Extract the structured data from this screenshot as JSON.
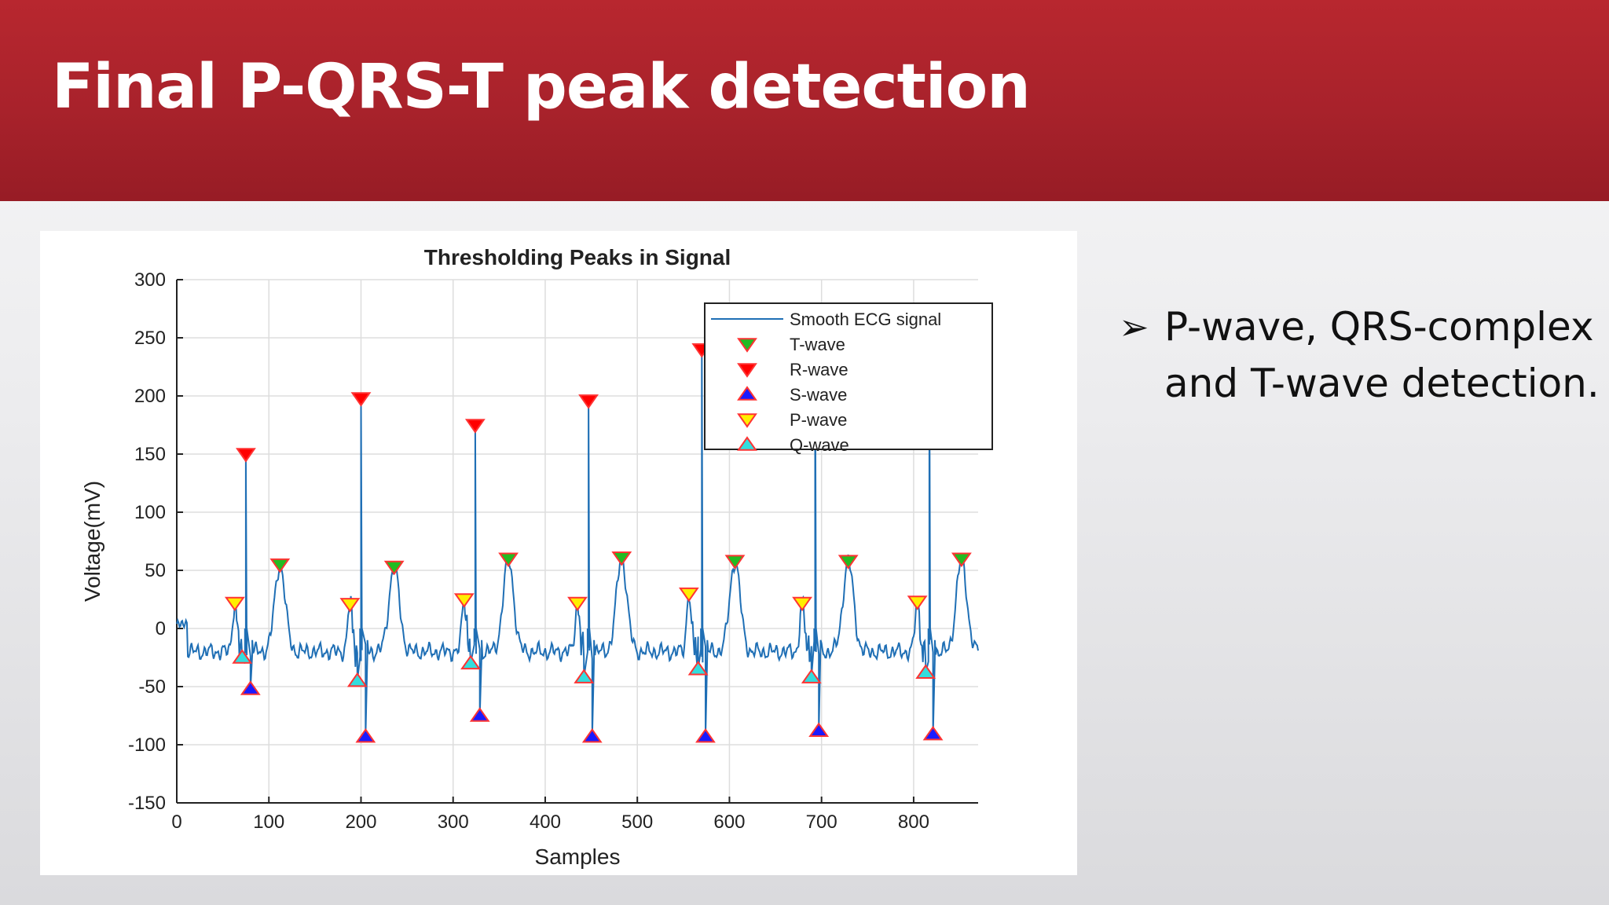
{
  "slide": {
    "title": "Final P-QRS-T peak detection",
    "bullet_symbol": "➢",
    "bullet_lines": [
      "P-wave, QRS-complex",
      "and T-wave detection."
    ]
  },
  "colors": {
    "header": "#a8222b",
    "signal": "#1f6fb5",
    "t_wave": "#22bb22",
    "r_wave": "#ff0000",
    "s_wave": "#1a1aff",
    "p_wave": "#ffee00",
    "q_wave": "#33dddd",
    "marker_edge": "#ff3333"
  },
  "chart_data": {
    "type": "line",
    "title": "Thresholding Peaks in Signal",
    "xlabel": "Samples",
    "ylabel": "Voltage(mV)",
    "xlim": [
      0,
      870
    ],
    "ylim": [
      -150,
      300
    ],
    "xticks": [
      0,
      100,
      200,
      300,
      400,
      500,
      600,
      700,
      800
    ],
    "yticks": [
      300,
      250,
      200,
      150,
      100,
      50,
      0,
      -50,
      -100,
      -150
    ],
    "grid": true,
    "legend": {
      "position": "top-right",
      "entries": [
        "Smooth ECG signal",
        "T-wave",
        "R-wave",
        "S-wave",
        "P-wave",
        "Q-wave"
      ]
    },
    "series": [
      {
        "name": "Smooth ECG signal",
        "kind": "line"
      },
      {
        "name": "T-wave",
        "kind": "marker",
        "marker": "down-triangle",
        "color": "#22bb22",
        "x": [
          112,
          236,
          360,
          483,
          606,
          729,
          852
        ],
        "y": [
          55,
          53,
          60,
          61,
          58,
          58,
          60
        ]
      },
      {
        "name": "R-wave",
        "kind": "marker",
        "marker": "down-triangle",
        "color": "#ff0000",
        "x": [
          75,
          200,
          324,
          447,
          570,
          693,
          817
        ],
        "y": [
          150,
          198,
          175,
          196,
          240,
          260,
          250
        ]
      },
      {
        "name": "S-wave",
        "kind": "marker",
        "marker": "up-triangle",
        "color": "#1a1aff",
        "x": [
          80,
          205,
          329,
          451,
          574,
          697,
          821
        ],
        "y": [
          -52,
          -93,
          -75,
          -93,
          -93,
          -88,
          -91
        ]
      },
      {
        "name": "P-wave",
        "kind": "marker",
        "marker": "down-triangle",
        "color": "#ffee00",
        "x": [
          63,
          188,
          312,
          435,
          556,
          679,
          804
        ],
        "y": [
          22,
          21,
          25,
          22,
          30,
          22,
          23
        ]
      },
      {
        "name": "Q-wave",
        "kind": "marker",
        "marker": "up-triangle",
        "color": "#33dddd",
        "x": [
          71,
          196,
          319,
          442,
          566,
          689,
          813
        ],
        "y": [
          -25,
          -45,
          -30,
          -42,
          -35,
          -42,
          -38
        ]
      }
    ]
  }
}
